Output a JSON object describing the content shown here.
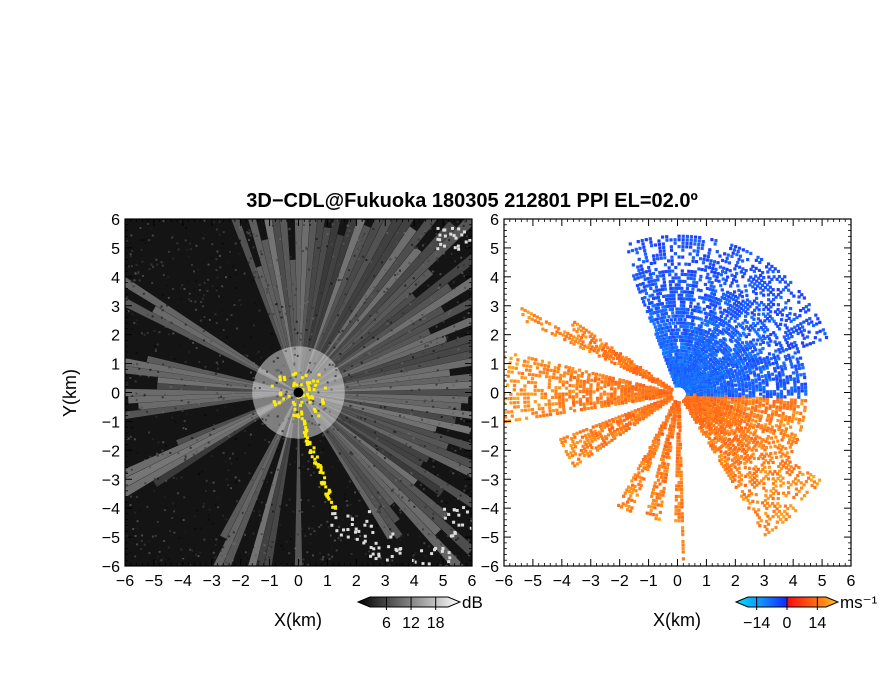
{
  "title": "3D−CDL@Fukuoka 180305 212801 PPI EL=02.0º",
  "colors": {
    "background": "#ffffff",
    "frame": "#000000",
    "highlight_yellow": "#ffee00",
    "velocity_negative": "#1040ff",
    "velocity_positive": "#ff3010"
  },
  "chart_data": [
    {
      "type": "heatmap",
      "quantity": "backscatter intensity",
      "xlabel": "X(km)",
      "ylabel": "Y(km)",
      "xlim": [
        -6,
        6
      ],
      "ylim": [
        -6,
        6
      ],
      "x_ticks": [
        "−6",
        "−5",
        "−4",
        "−3",
        "−2",
        "−1",
        "0",
        "1",
        "2",
        "3",
        "4",
        "5",
        "6"
      ],
      "y_ticks": [
        "6",
        "5",
        "4",
        "3",
        "2",
        "1",
        "0",
        "−1",
        "−2",
        "−3",
        "−4",
        "−5",
        "−6"
      ],
      "colorbar": {
        "unit": "dB",
        "tick_labels": [
          "6",
          "12",
          "18"
        ],
        "range": [
          2,
          21
        ]
      },
      "beam_blockage_sectors_deg": [
        [
          112,
          145
        ],
        [
          155,
          165
        ],
        [
          190,
          200
        ],
        [
          215,
          240
        ],
        [
          249,
          254
        ],
        [
          262,
          268
        ],
        [
          272,
          300
        ]
      ],
      "grid": false
    },
    {
      "type": "heatmap",
      "quantity": "radial velocity",
      "xlabel": "X(km)",
      "ylabel": "",
      "xlim": [
        -6,
        6
      ],
      "ylim": [
        -6,
        6
      ],
      "x_ticks": [
        "−6",
        "−5",
        "−4",
        "−3",
        "−2",
        "−1",
        "0",
        "1",
        "2",
        "3",
        "4",
        "5",
        "6"
      ],
      "y_ticks": [
        "6",
        "5",
        "4",
        "3",
        "2",
        "1",
        "0",
        "−1",
        "−2",
        "−3",
        "−4",
        "−5",
        "−6"
      ],
      "colorbar": {
        "unit": "ms⁻¹",
        "tick_labels": [
          "−14",
          "0",
          "14"
        ],
        "range": [
          -18,
          18
        ]
      },
      "approaching_flow": "negative (blue) toward north / north-east",
      "receding_flow": "positive (red/orange) toward south / west",
      "grid": false
    }
  ]
}
